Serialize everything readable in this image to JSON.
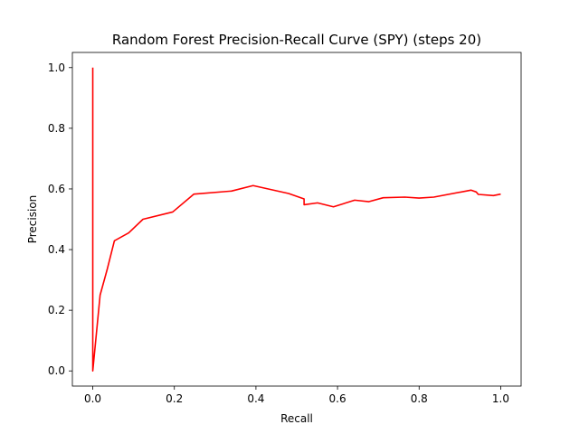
{
  "chart_data": {
    "type": "line",
    "title": "Random Forest Precision-Recall Curve (SPY) (steps 20)",
    "xlabel": "Recall",
    "ylabel": "Precision",
    "xlim": [
      -0.05,
      1.05
    ],
    "ylim": [
      -0.05,
      1.05
    ],
    "xticks": [
      0.0,
      0.2,
      0.4,
      0.6,
      0.8,
      1.0
    ],
    "yticks": [
      0.0,
      0.2,
      0.4,
      0.6,
      0.8,
      1.0
    ],
    "xtick_labels": [
      "0.0",
      "0.2",
      "0.4",
      "0.6",
      "0.8",
      "1.0"
    ],
    "ytick_labels": [
      "0.0",
      "0.2",
      "0.4",
      "0.6",
      "0.8",
      "1.0"
    ],
    "grid": false,
    "series": [
      {
        "color": "#ff0000",
        "x": [
          0.0,
          0.0,
          0.0,
          0.018,
          0.035,
          0.053,
          0.088,
          0.123,
          0.196,
          0.248,
          0.34,
          0.393,
          0.48,
          0.518,
          0.518,
          0.551,
          0.59,
          0.642,
          0.677,
          0.712,
          0.765,
          0.8,
          0.836,
          0.927,
          0.94,
          0.945,
          0.982,
          1.0
        ],
        "y": [
          1.0,
          0.0,
          0.0,
          0.25,
          0.333,
          0.429,
          0.455,
          0.5,
          0.524,
          0.583,
          0.593,
          0.611,
          0.585,
          0.567,
          0.548,
          0.554,
          0.541,
          0.563,
          0.558,
          0.571,
          0.573,
          0.57,
          0.573,
          0.596,
          0.59,
          0.582,
          0.578,
          0.583
        ]
      }
    ]
  }
}
